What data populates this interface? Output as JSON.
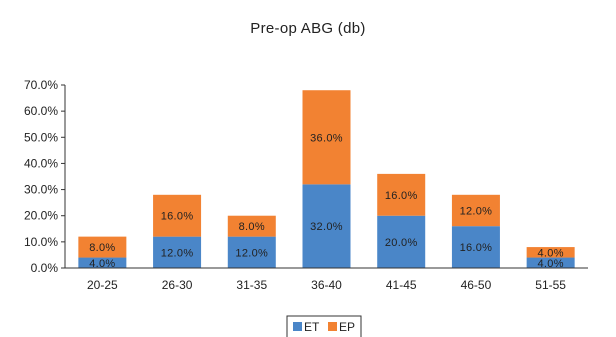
{
  "chart_data": {
    "type": "bar",
    "stacked": true,
    "title": "Pre-op ABG (db)",
    "xlabel": "",
    "ylabel": "",
    "categories": [
      "20-25",
      "26-30",
      "31-35",
      "36-40",
      "41-45",
      "46-50",
      "51-55"
    ],
    "series": [
      {
        "name": "ET",
        "color": "#4a86c8",
        "values": [
          4.0,
          12.0,
          12.0,
          32.0,
          20.0,
          16.0,
          4.0
        ]
      },
      {
        "name": "EP",
        "color": "#f28232",
        "values": [
          8.0,
          16.0,
          8.0,
          36.0,
          16.0,
          12.0,
          4.0
        ]
      }
    ],
    "data_labels": [
      [
        "4.0%",
        "12.0%",
        "12.0%",
        "32.0%",
        "20.0%",
        "16.0%",
        "4.0%"
      ],
      [
        "8.0%",
        "16.0%",
        "8.0%",
        "36.0%",
        "16.0%",
        "12.0%",
        "4.0%"
      ]
    ],
    "yticks": [
      0,
      10,
      20,
      30,
      40,
      50,
      60,
      70
    ],
    "ytick_labels": [
      "0.0%",
      "10.0%",
      "20.0%",
      "30.0%",
      "40.0%",
      "50.0%",
      "60.0%",
      "70.0%"
    ],
    "ylim": [
      0,
      70
    ],
    "grid": false,
    "legend_position": "bottom-center"
  }
}
